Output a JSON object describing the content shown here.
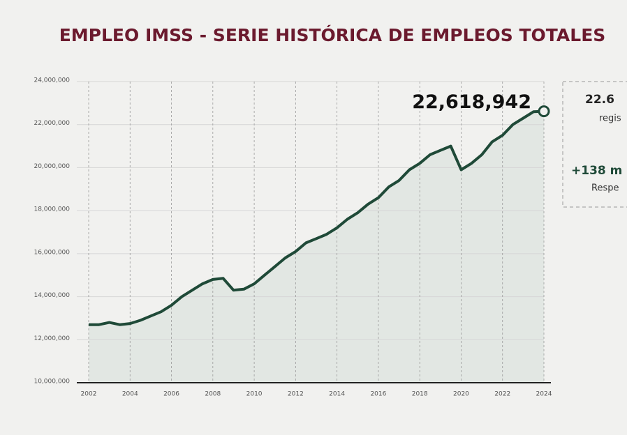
{
  "chart_data": {
    "type": "line",
    "title": "EMPLEO IMSS - SERIE HISTÓRICA DE EMPLEOS TOTALES",
    "x": [
      2002,
      2002.5,
      2003,
      2003.5,
      2004,
      2004.5,
      2005,
      2005.5,
      2006,
      2006.5,
      2007,
      2007.5,
      2008,
      2008.5,
      2009,
      2009.5,
      2010,
      2010.5,
      2011,
      2011.5,
      2012,
      2012.5,
      2013,
      2013.5,
      2014,
      2014.5,
      2015,
      2015.5,
      2016,
      2016.5,
      2017,
      2017.5,
      2018,
      2018.5,
      2019,
      2019.5,
      2020,
      2020.5,
      2021,
      2021.5,
      2022,
      2022.5,
      2023,
      2023.5,
      2024
    ],
    "values": [
      12700000,
      12700000,
      12800000,
      12700000,
      12750000,
      12900000,
      13100000,
      13300000,
      13600000,
      14000000,
      14300000,
      14600000,
      14800000,
      14850000,
      14300000,
      14350000,
      14600000,
      15000000,
      15400000,
      15800000,
      16100000,
      16500000,
      16700000,
      16900000,
      17200000,
      17600000,
      17900000,
      18300000,
      18600000,
      19100000,
      19400000,
      19900000,
      20200000,
      20600000,
      20800000,
      21000000,
      19900000,
      20200000,
      20600000,
      21200000,
      21500000,
      22000000,
      22300000,
      22600000,
      22618942
    ],
    "color": "#1f4a38",
    "area_color": "#e2e7e3",
    "annotation": "22,618,942",
    "xlim": [
      2002,
      2024
    ],
    "xticks": [
      2002,
      2004,
      2006,
      2008,
      2010,
      2012,
      2014,
      2016,
      2018,
      2020,
      2022,
      2024
    ],
    "ylim": [
      10000000,
      24000000
    ],
    "yticks": [
      {
        "value": 10000000,
        "label": "10,000,000"
      },
      {
        "value": 12000000,
        "label": "12,000,000"
      },
      {
        "value": 14000000,
        "label": "14,000,000"
      },
      {
        "value": 16000000,
        "label": "16,000,000"
      },
      {
        "value": 18000000,
        "label": "18,000,000"
      },
      {
        "value": 20000000,
        "label": "20,000,000"
      },
      {
        "value": 22000000,
        "label": "22,000,000"
      },
      {
        "value": 24000000,
        "label": "24,000,000"
      }
    ],
    "grid": true,
    "panel": {
      "line1": "22.6",
      "line2": "regis",
      "line3": "+138 m",
      "line4": "Respe"
    }
  }
}
